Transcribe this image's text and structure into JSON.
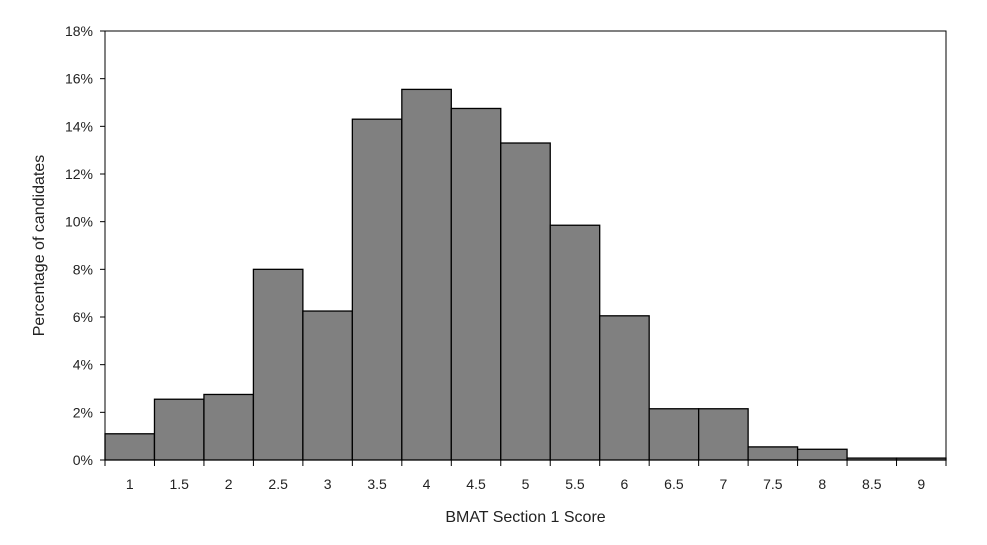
{
  "chart_data": {
    "type": "bar",
    "categories": [
      "1",
      "1.5",
      "2",
      "2.5",
      "3",
      "3.5",
      "4",
      "4.5",
      "5",
      "5.5",
      "6",
      "6.5",
      "7",
      "7.5",
      "8",
      "8.5",
      "9"
    ],
    "values": [
      1.1,
      2.55,
      2.75,
      8.0,
      6.25,
      14.3,
      15.55,
      14.75,
      13.3,
      9.85,
      6.05,
      2.15,
      2.15,
      0.55,
      0.45,
      0.08,
      0.08
    ],
    "xlabel": "BMAT Section 1 Score",
    "ylabel": "Percentage of candidates",
    "ylim": [
      0,
      18
    ],
    "yticks": [
      "0%",
      "2%",
      "4%",
      "6%",
      "8%",
      "10%",
      "12%",
      "14%",
      "16%",
      "18%"
    ],
    "grid": false,
    "bar_color": "#808080",
    "bar_edge_color": "#000000"
  }
}
